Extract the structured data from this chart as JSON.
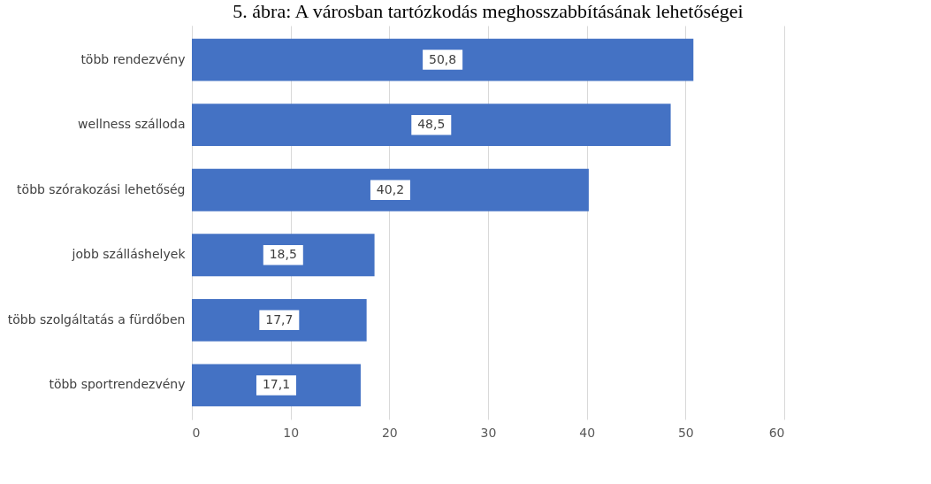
{
  "chart_data": {
    "type": "bar",
    "orientation": "horizontal",
    "title": "5. ábra: A városban tartózkodás meghosszabbításának lehetőségei",
    "categories": [
      "több rendezvény",
      "wellness szálloda",
      "több szórakozási lehetőség",
      "jobb szálláshelyek",
      "több szolgáltatás a fürdőben",
      "több sportrendezvény"
    ],
    "values": [
      50.8,
      48.5,
      40.2,
      18.5,
      17.7,
      17.1
    ],
    "value_labels": [
      "50,8",
      "48,5",
      "40,2",
      "18,5",
      "17,7",
      "17,1"
    ],
    "color": "#4472c4",
    "xlim": [
      0,
      60
    ],
    "xticks": [
      0,
      10,
      20,
      30,
      40,
      50,
      60
    ],
    "grid": "x"
  }
}
